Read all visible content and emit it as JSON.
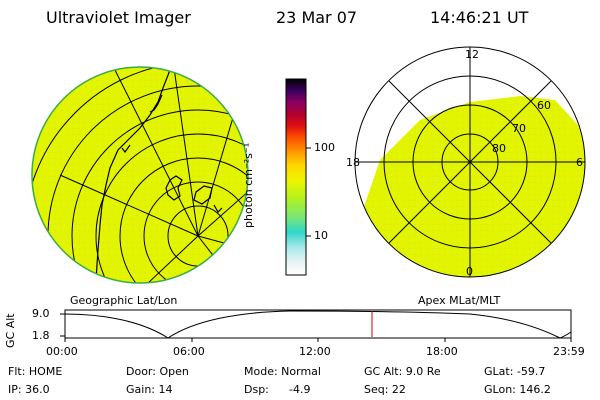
{
  "header": {
    "title": "Ultraviolet Imager",
    "date": "23 Mar 07",
    "time": "14:46:21 UT"
  },
  "colorbar": {
    "unit_label": "photon cm⁻²s⁻¹",
    "ticks": [
      "100",
      "10"
    ]
  },
  "geo_panel": {
    "label": "Geographic Lat/Lon"
  },
  "polar_panel": {
    "label": "Apex MLat/MLT",
    "mlt_labels": [
      "12",
      "18",
      "6",
      "0"
    ],
    "lat_labels": [
      "60",
      "70",
      "80"
    ]
  },
  "timeline": {
    "axis_label": "GC Alt",
    "y_ticks": [
      "9.0",
      "1.8"
    ],
    "x_ticks": [
      "00:00",
      "06:00",
      "12:00",
      "18:00",
      "23:59"
    ]
  },
  "status": {
    "row1": {
      "flt": "Flt: HOME",
      "door": "Door: Open",
      "mode": "Mode: Normal",
      "gcalt": "GC Alt: 9.0 Re",
      "glat": "GLat: -59.7"
    },
    "row2": {
      "ip": "IP: 36.0",
      "gain": "Gain: 14",
      "dsp_label": "Dsp:",
      "dsp_value": "-4.9",
      "seq": "Seq: 22",
      "glon": "GLon: 146.2"
    }
  },
  "colors": {
    "image_fill": "#e2f400",
    "grid": "#000000",
    "marker": "#cc0000"
  }
}
